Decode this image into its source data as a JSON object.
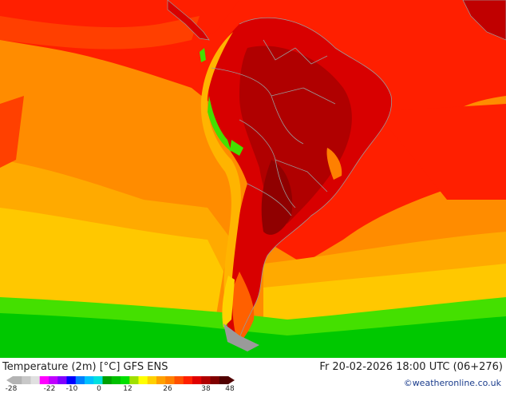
{
  "map": {
    "title": "Temperature (2m) [°C] GFS ENS",
    "datetime": "Fr 20-02-2026 18:00 UTC (06+276)",
    "credit": "©weatheronline.co.uk",
    "legend": {
      "ticks": [
        "-28",
        "-22",
        "-10",
        "0",
        "12",
        "26",
        "38",
        "48"
      ],
      "colors": [
        "#b3b3b3",
        "#c8c8c8",
        "#e0e0e0",
        "#ff00ff",
        "#c000ff",
        "#8000ff",
        "#0000ff",
        "#0080ff",
        "#00c0ff",
        "#00e0e0",
        "#00a000",
        "#00c000",
        "#00e000",
        "#a0e000",
        "#ffff00",
        "#ffd000",
        "#ffa000",
        "#ff8000",
        "#ff5000",
        "#ff2000",
        "#e00000",
        "#b00000",
        "#800000",
        "#500000"
      ]
    },
    "palette": {
      "ocean_warm": "#ff1f00",
      "ocean_orange": "#ff8c00",
      "ocean_amber": "#ffaa00",
      "ocean_yellow": "#ffc800",
      "green_south": "#00c800",
      "green_light": "#44e000",
      "land_hot": "#d80000",
      "land_very_hot": "#a80000",
      "andes_cool": "#ffb400",
      "border": "#9a9a9a"
    }
  }
}
